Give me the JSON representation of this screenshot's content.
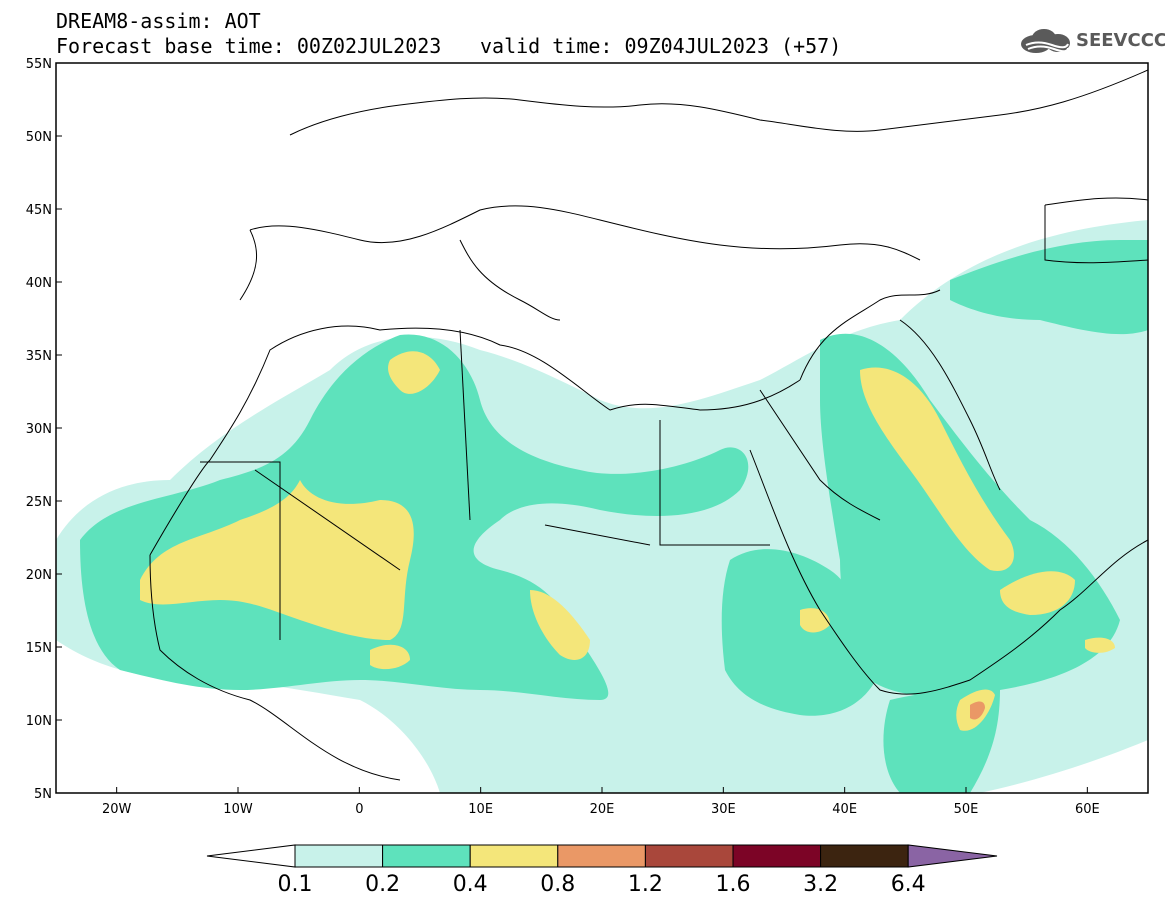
{
  "header": {
    "title_line1": "DREAM8-assim: AOT",
    "title_line2": "Forecast base time: 00Z02JUL2023",
    "valid_time": "valid time: 09Z04JUL2023 (+57)"
  },
  "logo": {
    "text": "SEEVCCC",
    "icon": "cloud-logo-icon",
    "color": "#5a5a5a"
  },
  "map": {
    "lon_range": [
      -25,
      65
    ],
    "lat_range": [
      5,
      55
    ],
    "lat_labels": [
      "55N",
      "50N",
      "45N",
      "40N",
      "35N",
      "30N",
      "25N",
      "20N",
      "15N",
      "10N",
      "5N"
    ],
    "lat_values": [
      55,
      50,
      45,
      40,
      35,
      30,
      25,
      20,
      15,
      10,
      5
    ],
    "lon_labels": [
      "20W",
      "10W",
      "0",
      "10E",
      "20E",
      "30E",
      "40E",
      "50E",
      "60E"
    ],
    "lon_values": [
      -20,
      -10,
      0,
      10,
      20,
      30,
      40,
      50,
      60
    ]
  },
  "colorbar": {
    "labels": [
      "0.1",
      "0.2",
      "0.4",
      "0.8",
      "1.2",
      "1.6",
      "3.2",
      "6.4"
    ],
    "colors": [
      "#c8f2ea",
      "#5ee2bc",
      "#f4e67a",
      "#ea9866",
      "#a9473b",
      "#7c0426",
      "#3c2410"
    ],
    "low_extend_color": "#ffffff",
    "high_extend_color": "#8a64a4"
  },
  "palette": {
    "lvl1": "#c8f2ea",
    "lvl2": "#5ee2bc",
    "lvl3": "#f4e67a",
    "lvl4": "#ea9866",
    "lvl5": "#a9473b"
  }
}
